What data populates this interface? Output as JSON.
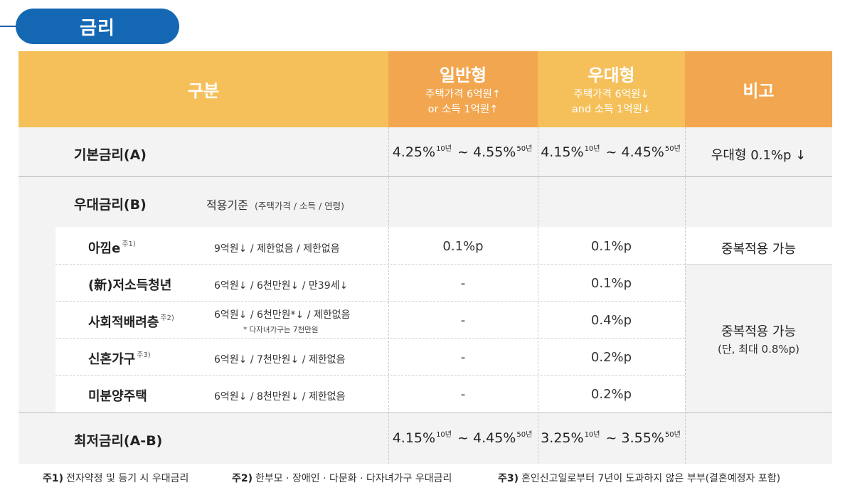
{
  "section": {
    "title": "금리"
  },
  "header": {
    "category": "구분",
    "general": {
      "title": "일반형",
      "line1": "주택가격 6억원↑",
      "line2": "or 소득 1억원↑"
    },
    "preferred": {
      "title": "우대형",
      "line1": "주택가격 6억원↓",
      "line2": "and 소득 1억원↓"
    },
    "remarks": "비고"
  },
  "base_rate": {
    "label": "기본금리(A)",
    "general": {
      "from": "4.25%",
      "from_term": "10년",
      "sep": " ~ ",
      "to": "4.55%",
      "to_term": "50년"
    },
    "preferred": {
      "from": "4.15%",
      "from_term": "10년",
      "sep": " ~ ",
      "to": "4.45%",
      "to_term": "50년"
    },
    "remarks": "우대형 0.1%p ↓"
  },
  "discount": {
    "label": "우대금리(B)",
    "criteria_label": "적용기준",
    "criteria_detail": "(주택가격 / 소득 / 연령)",
    "items": [
      {
        "name": "아낌e",
        "note": "주1)",
        "criteria": "9억원↓ / 제한없음 / 제한없음",
        "criteria_note": "",
        "general": "0.1%p",
        "preferred": "0.1%p"
      },
      {
        "name": "(新)저소득청년",
        "note": "",
        "criteria": "6억원↓ / 6천만원↓ / 만39세↓",
        "criteria_note": "",
        "general": "-",
        "preferred": "0.1%p"
      },
      {
        "name": "사회적배려층",
        "note": "주2)",
        "criteria": "6억원↓ / 6천만원*↓ / 제한없음",
        "criteria_note": "* 다자녀가구는 7천만원",
        "general": "-",
        "preferred": "0.4%p"
      },
      {
        "name": "신혼가구",
        "note": "주3)",
        "criteria": "6억원↓ / 7천만원↓ / 제한없음",
        "criteria_note": "",
        "general": "-",
        "preferred": "0.2%p"
      },
      {
        "name": "미분양주택",
        "note": "",
        "criteria": "6억원↓ / 8천만원↓ / 제한없음",
        "criteria_note": "",
        "general": "-",
        "preferred": "0.2%p"
      }
    ],
    "remarks_first": "중복적용 가능",
    "remarks_group_line1": "중복적용 가능",
    "remarks_group_line2": "(단, 최대 0.8%p)"
  },
  "min_rate": {
    "label": "최저금리(A-B)",
    "general": {
      "from": "4.15%",
      "from_term": "10년",
      "sep": " ~ ",
      "to": "4.45%",
      "to_term": "50년"
    },
    "preferred": {
      "from": "3.25%",
      "from_term": "10년",
      "sep": " ~ ",
      "to": "3.55%",
      "to_term": "50년"
    }
  },
  "footnotes": [
    {
      "mark": "주1)",
      "text": "전자약정 및 등기 시 우대금리"
    },
    {
      "mark": "주2)",
      "text": "한부모 · 장애인 · 다문화 · 다자녀가구 우대금리"
    },
    {
      "mark": "주3)",
      "text": "혼인신고일로부터 7년이 도과하지 않은 부부(결혼예정자 포함)"
    }
  ],
  "colors": {
    "header_category": "#f5c05a",
    "header_general": "#f2a64f",
    "header_preferred": "#f5c05a",
    "header_remarks": "#f2a64f",
    "title_pill": "#1468b3"
  }
}
